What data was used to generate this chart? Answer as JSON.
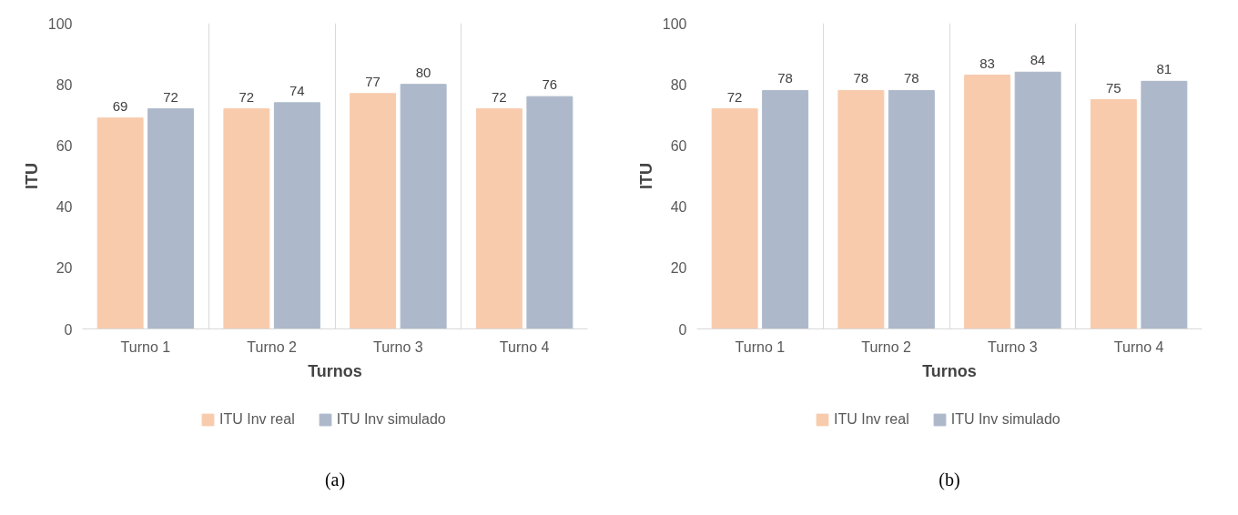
{
  "chart_data": [
    {
      "type": "bar",
      "xlabel": "Turnos",
      "ylabel": "ITU",
      "categories": [
        "Turno 1",
        "Turno 2",
        "Turno 3",
        "Turno 4"
      ],
      "series": [
        {
          "name": "ITU Inv real",
          "color": "#f8cbad",
          "values": [
            69,
            72,
            77,
            72
          ]
        },
        {
          "name": "ITU Inv simulado",
          "color": "#adb9ca",
          "values": [
            72,
            74,
            80,
            76
          ]
        }
      ],
      "ylim": [
        0,
        100
      ],
      "yticks": [
        0,
        20,
        40,
        60,
        80,
        100
      ],
      "grid": "x",
      "legend": "bottom",
      "data_labels": true,
      "annotations": [
        "(a)"
      ]
    },
    {
      "type": "bar",
      "xlabel": "Turnos",
      "ylabel": "ITU",
      "categories": [
        "Turno 1",
        "Turno 2",
        "Turno 3",
        "Turno 4"
      ],
      "series": [
        {
          "name": "ITU Inv real",
          "color": "#f8cbad",
          "values": [
            72,
            78,
            83,
            75
          ]
        },
        {
          "name": "ITU Inv simulado",
          "color": "#adb9ca",
          "values": [
            78,
            78,
            84,
            81
          ]
        }
      ],
      "ylim": [
        0,
        100
      ],
      "yticks": [
        0,
        20,
        40,
        60,
        80,
        100
      ],
      "grid": "x",
      "legend": "bottom",
      "data_labels": true,
      "annotations": [
        "(b)"
      ]
    }
  ]
}
